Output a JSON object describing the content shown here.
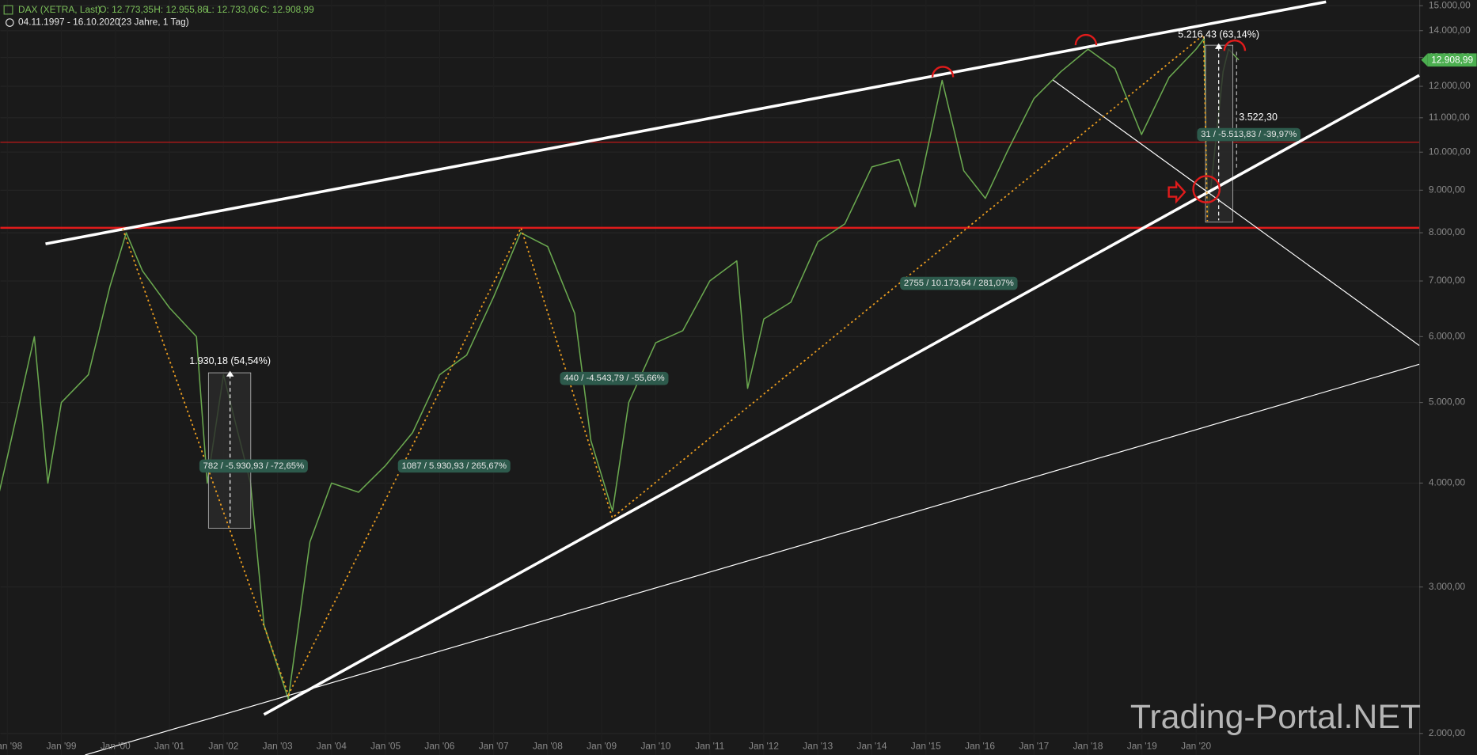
{
  "chart_data": {
    "type": "line",
    "header": {
      "ohlc": [
        "O: 12.773,35",
        "H: 12.955,86",
        "L: 12.733,06",
        "C: 12.908,99"
      ],
      "range": "04.11.1997 - 16.10.2020",
      "span": "(23 Jahre, 1 Tag)"
    },
    "log_scale": true,
    "xlim": [
      1997.87,
      2024.13
    ],
    "ylim": [
      1884,
      15240
    ],
    "xticks": [
      {
        "value": 1998,
        "label": "Jan '98"
      },
      {
        "value": 1999,
        "label": "Jan '99"
      },
      {
        "value": 2000,
        "label": "Jan '00"
      },
      {
        "value": 2001,
        "label": "Jan '01"
      },
      {
        "value": 2002,
        "label": "Jan '02"
      },
      {
        "value": 2003,
        "label": "Jan '03"
      },
      {
        "value": 2004,
        "label": "Jan '04"
      },
      {
        "value": 2005,
        "label": "Jan '05"
      },
      {
        "value": 2006,
        "label": "Jan '06"
      },
      {
        "value": 2007,
        "label": "Jan '07"
      },
      {
        "value": 2008,
        "label": "Jan '08"
      },
      {
        "value": 2009,
        "label": "Jan '09"
      },
      {
        "value": 2010,
        "label": "Jan '10"
      },
      {
        "value": 2011,
        "label": "Jan '11"
      },
      {
        "value": 2012,
        "label": "Jan '12"
      },
      {
        "value": 2013,
        "label": "Jan '13"
      },
      {
        "value": 2014,
        "label": "Jan '14"
      },
      {
        "value": 2015,
        "label": "Jan '15"
      },
      {
        "value": 2016,
        "label": "Jan '16"
      },
      {
        "value": 2017,
        "label": "Jan '17"
      },
      {
        "value": 2018,
        "label": "Jan '18"
      },
      {
        "value": 2019,
        "label": "Jan '19"
      },
      {
        "value": 2020,
        "label": "Jan '20"
      }
    ],
    "yticks": [
      {
        "value": 2000,
        "label": "2.000,00"
      },
      {
        "value": 3000,
        "label": "3.000,00"
      },
      {
        "value": 4000,
        "label": "4.000,00"
      },
      {
        "value": 5000,
        "label": "5.000,00"
      },
      {
        "value": 6000,
        "label": "6.000,00"
      },
      {
        "value": 7000,
        "label": "7.000,00"
      },
      {
        "value": 8000,
        "label": "8.000,00"
      },
      {
        "value": 9000,
        "label": "9.000,00"
      },
      {
        "value": 10000,
        "label": "10.000,00"
      },
      {
        "value": 11000,
        "label": "11.000,00"
      },
      {
        "value": 12000,
        "label": "12.000,00"
      },
      {
        "value": 13000,
        "label": "13.000,00"
      },
      {
        "value": 14000,
        "label": "14.000,00"
      },
      {
        "value": 15000,
        "label": "15.000,00"
      }
    ],
    "x": [
      1997.85,
      1998.0,
      1998.5,
      1998.75,
      1999.0,
      1999.5,
      1999.9,
      2000.2,
      2000.5,
      2001.0,
      2001.5,
      2001.7,
      2002.0,
      2002.5,
      2002.75,
      2003.2,
      2003.6,
      2004.0,
      2004.5,
      2005.0,
      2005.5,
      2006.0,
      2006.5,
      2007.0,
      2007.5,
      2008.0,
      2008.5,
      2008.8,
      2009.2,
      2009.5,
      2010.0,
      2010.5,
      2011.0,
      2011.5,
      2011.7,
      2012.0,
      2012.5,
      2013.0,
      2013.5,
      2014.0,
      2014.5,
      2014.8,
      2015.3,
      2015.7,
      2016.1,
      2016.5,
      2017.0,
      2017.5,
      2018.0,
      2018.5,
      2018.99,
      2019.5,
      2020.0,
      2020.15,
      2020.22,
      2020.5,
      2020.6,
      2020.79
    ],
    "series": [
      {
        "name": "DAX (XETRA, Last)",
        "color": "#6aa84f",
        "values": [
          3900,
          4300,
          6000,
          4000,
          5000,
          5400,
          6900,
          8000,
          7200,
          6500,
          6000,
          4000,
          5400,
          4000,
          2700,
          2200,
          3400,
          4000,
          3900,
          4200,
          4600,
          5400,
          5700,
          6700,
          8000,
          7700,
          6400,
          4500,
          3700,
          5000,
          5900,
          6100,
          7000,
          7400,
          5200,
          6300,
          6600,
          7800,
          8200,
          9600,
          9800,
          8600,
          12200,
          9500,
          8800,
          10000,
          11600,
          12500,
          13300,
          12600,
          10500,
          12300,
          13300,
          13700,
          8400,
          12500,
          13300,
          12909
        ]
      }
    ],
    "last": {
      "value": 12908.99,
      "label": "12.908,99",
      "color": "#4caf50"
    },
    "levels": [
      {
        "value": 8110,
        "color": "#e01b1b"
      },
      {
        "value": 10280,
        "color": "#d01818"
      }
    ],
    "annotations": [
      "1.930,18 (54,54%)",
      "782 / -5.930,93 / -72,65%",
      "1087 / 5.930,93 / 265,67%",
      "440 / -4.543,79 / -55,66%",
      "2755 / 10.173,64 / 281,07%",
      "5.216,43 (63,14%)",
      "31 / -5.513,83 / -39,97%",
      "3.522,30"
    ],
    "watermark": "Trading-Portal.NET"
  }
}
